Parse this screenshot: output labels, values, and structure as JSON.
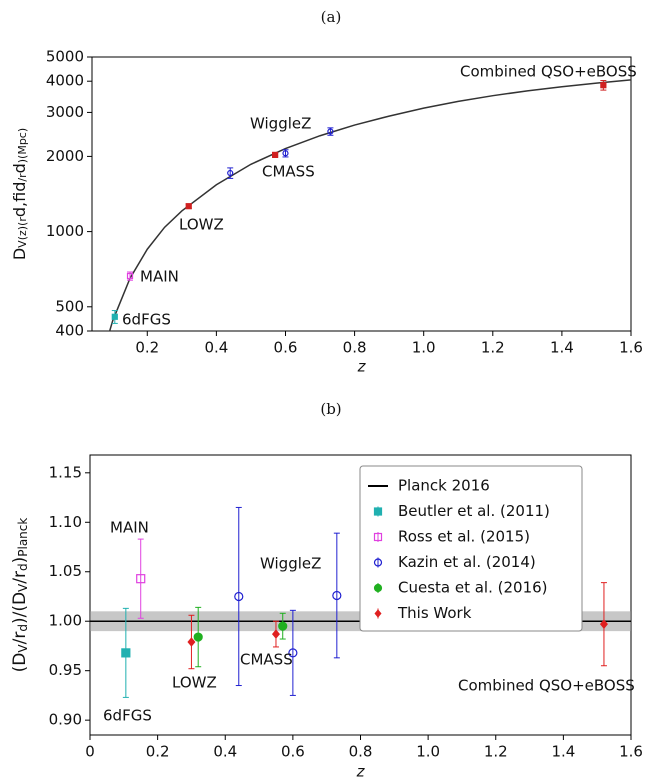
{
  "chart_data": [
    {
      "type": "errorbar",
      "title": "(a)",
      "xlabel": "z",
      "ylabel": [
        "D",
        "V(z)(r",
        "d,fid",
        "/r",
        "d",
        ")(Mpc)"
      ],
      "log_y": true,
      "xlim": [
        0.04,
        1.6
      ],
      "ylim": [
        400,
        5000
      ],
      "xticks": [
        0.2,
        0.4,
        0.6,
        0.8,
        {
          "value": 1,
          "label": "1.0"
        },
        1.2,
        1.4,
        1.6
      ],
      "yticks": [
        400,
        500,
        1000,
        2000,
        3000,
        4000,
        5000
      ],
      "curve": {
        "color": "#333333",
        "x": [
          0.08,
          0.1,
          0.15,
          0.2,
          0.25,
          0.3,
          0.4,
          0.5,
          0.6,
          0.7,
          0.8,
          0.9,
          1.0,
          1.1,
          1.2,
          1.3,
          1.4,
          1.5,
          1.6
        ],
        "values": [
          355,
          440,
          650,
          850,
          1040,
          1210,
          1540,
          1860,
          2150,
          2420,
          2670,
          2900,
          3120,
          3320,
          3500,
          3660,
          3800,
          3930,
          4050
        ]
      },
      "series": [
        {
          "color": "#20b0b0",
          "marker": "square",
          "x": [
            0.106
          ],
          "values": [
            456
          ],
          "errors": [
            27
          ]
        },
        {
          "color": "#e040e0",
          "marker": "open-square",
          "x": [
            0.15
          ],
          "values": [
            664
          ],
          "errors": [
            25
          ]
        },
        {
          "color": "#d02020",
          "marker": "square",
          "x": [
            0.32,
            0.57,
            1.52
          ],
          "values": [
            1264,
            2028,
            3855
          ],
          "errors": [
            25,
            20,
            170
          ]
        },
        {
          "color": "#2020d0",
          "marker": "open-circle",
          "x": [
            0.44,
            0.6,
            0.73
          ],
          "values": [
            1716,
            2058,
            2516
          ],
          "errors": [
            83,
            68,
            86
          ]
        }
      ],
      "annotations": [
        "6dFGS",
        "MAIN",
        "LOWZ",
        "CMASS",
        "WiggleZ",
        "Combined QSO+eBOSS"
      ]
    },
    {
      "type": "errorbar",
      "title": "(b)",
      "xlabel": "z",
      "ylabel": [
        "(D",
        "V",
        "/r",
        "d",
        ")/(D",
        "V",
        "/r",
        "d",
        ")",
        "Planck"
      ],
      "log_y": false,
      "xlim": [
        0,
        1.6
      ],
      "ylim": [
        0.885,
        1.168
      ],
      "xticks": [
        0,
        0.2,
        0.4,
        0.6,
        0.8,
        {
          "value": 1,
          "label": "1.0"
        },
        1.2,
        1.4,
        1.6
      ],
      "yticks": [
        {
          "value": 0.9,
          "label": "0.90"
        },
        0.95,
        {
          "value": 1,
          "label": "1.00"
        },
        1.05,
        {
          "value": 1.1,
          "label": "1.10"
        },
        1.15
      ],
      "series": [
        {
          "name": "Planck 2016",
          "color": "#000000",
          "marker": "hline",
          "values": [
            1
          ],
          "errors": [
            0.01
          ]
        },
        {
          "name": "Beutler et al. (2011)",
          "color": "#20b0b0",
          "marker": "square",
          "x": [
            0.106
          ],
          "values": [
            0.968
          ],
          "errors": [
            0.045
          ]
        },
        {
          "name": "Ross et al. (2015)",
          "color": "#e040e0",
          "marker": "open-square",
          "x": [
            0.15
          ],
          "values": [
            1.043
          ],
          "errors": [
            0.04
          ]
        },
        {
          "name": "Kazin et al. (2014)",
          "color": "#2020d0",
          "marker": "open-circle",
          "x": [
            0.44,
            0.6,
            0.73
          ],
          "values": [
            1.025,
            0.968,
            1.026
          ],
          "errors": [
            0.09,
            0.043,
            0.063
          ]
        },
        {
          "name": "Cuesta et al. (2016)",
          "color": "#20b020",
          "marker": "circle",
          "x": [
            0.32,
            0.57
          ],
          "values": [
            0.984,
            0.995
          ],
          "errors": [
            0.03,
            0.013
          ]
        },
        {
          "name": "This Work",
          "color": "#e02020",
          "marker": "diamond",
          "x": [
            0.3,
            0.55,
            1.52
          ],
          "values": [
            0.979,
            0.987,
            0.997
          ],
          "errors": [
            0.027,
            0.013,
            0.042
          ]
        }
      ],
      "annotations": [
        "MAIN",
        "6dFGS",
        "LOWZ",
        "CMASS",
        "WiggleZ",
        "Combined QSO+eBOSS"
      ]
    }
  ]
}
